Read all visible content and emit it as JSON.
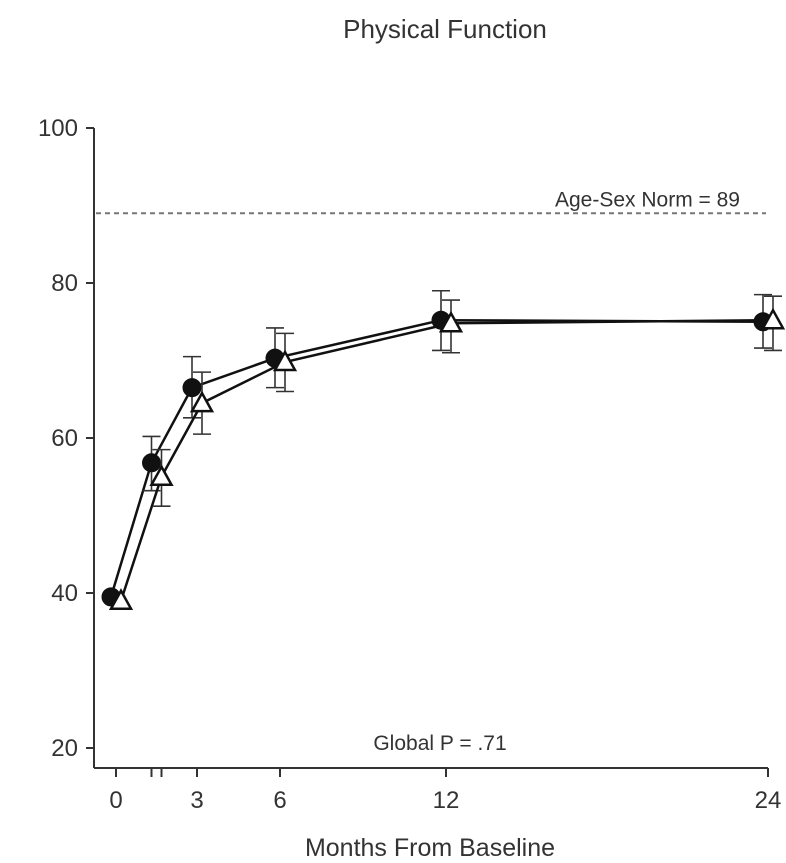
{
  "chart_data": {
    "type": "line",
    "title": "Physical Function",
    "xlabel": "Months From Baseline",
    "ylabel": "",
    "x_ticks": [
      0,
      3,
      6,
      12,
      24
    ],
    "x_tick_labels": [
      "0",
      "3",
      "6",
      "12",
      "24"
    ],
    "x_minor_ticks": [
      1.5,
      1.5
    ],
    "y_ticks": [
      20,
      40,
      60,
      80,
      100
    ],
    "y_tick_labels": [
      "20",
      "40",
      "60",
      "80",
      "100"
    ],
    "xlim": [
      -0.6,
      24
    ],
    "ylim": [
      18,
      100
    ],
    "grid": false,
    "legend": "none",
    "series": [
      {
        "marker": "filled-circle",
        "color": "#111111",
        "x": [
          0,
          1.5,
          3,
          6,
          12,
          24
        ],
        "y": [
          39.5,
          56.8,
          66.5,
          70.3,
          75.2,
          75.0
        ],
        "err_low": [
          39.5,
          53.2,
          62.6,
          66.5,
          71.3,
          71.6
        ],
        "err_high": [
          39.5,
          60.2,
          70.5,
          74.2,
          79.0,
          78.5
        ]
      },
      {
        "marker": "open-triangle",
        "color": "#111111",
        "x": [
          0,
          1.5,
          3,
          6,
          12,
          24
        ],
        "y": [
          39.0,
          55.0,
          64.5,
          69.8,
          74.8,
          75.2
        ],
        "err_low": [
          39.0,
          51.2,
          60.5,
          66.0,
          71.0,
          71.3
        ],
        "err_high": [
          39.0,
          58.5,
          68.5,
          73.5,
          77.8,
          78.3
        ]
      }
    ],
    "reference_line": {
      "y": 89,
      "label": "Age-Sex Norm = 89"
    },
    "annotations": [
      {
        "text": "Global P = .71"
      }
    ]
  }
}
